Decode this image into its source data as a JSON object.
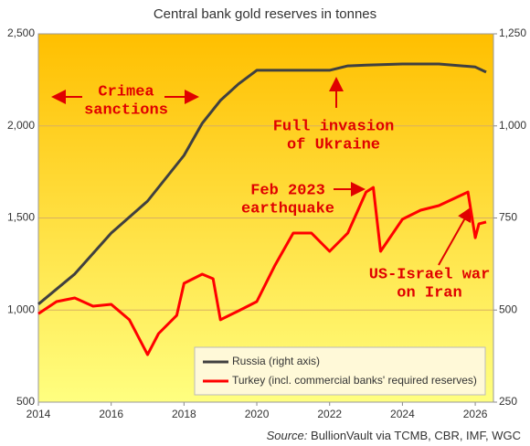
{
  "chart_data": {
    "type": "line",
    "title": "Central bank gold reserves in tonnes",
    "source_label": "Source:",
    "source": "BullionVault via TCMB, CBR, IMF, WGC",
    "xlim": [
      2014,
      2026.5
    ],
    "xticks": [
      2014,
      2016,
      2018,
      2020,
      2022,
      2024,
      2026
    ],
    "ylim": [
      500,
      2500
    ],
    "yticks": [
      500,
      {
        "value": 1000,
        "label": "1,000"
      },
      {
        "value": 1500,
        "label": "1,500"
      },
      {
        "value": 2000,
        "label": "2,000"
      },
      {
        "value": 2500,
        "label": "2,500"
      }
    ],
    "y2lim": [
      250,
      1250
    ],
    "y2ticks": [
      250,
      500,
      750,
      {
        "value": 1000,
        "label": "1,000"
      },
      {
        "value": 1250,
        "label": "1,250"
      }
    ],
    "grid": true,
    "series": [
      {
        "name": "Russia (right axis)",
        "color": "#404040",
        "axis": "y2",
        "x": [
          2014,
          2015,
          2016,
          2017,
          2018,
          2018.5,
          2019,
          2019.5,
          2020,
          2021,
          2022,
          2022.5,
          2023,
          2024,
          2025,
          2026,
          2026.3
        ],
        "values": [
          516,
          598,
          709,
          796,
          920,
          1007,
          1069,
          1114,
          1151,
          1151,
          1151,
          1163,
          1165,
          1168,
          1168,
          1160,
          1146
        ]
      },
      {
        "name": "Turkey (incl. commercial banks' required reserves)",
        "color": "#ff0000",
        "axis": "y",
        "x": [
          2014,
          2014.5,
          2015,
          2015.5,
          2016,
          2016.5,
          2017,
          2017.3,
          2017.8,
          2018,
          2018.5,
          2018.8,
          2019,
          2019.5,
          2020,
          2020.5,
          2021,
          2021.5,
          2022,
          2022.5,
          2023,
          2023.2,
          2023.4,
          2024,
          2024.5,
          2025,
          2025.8,
          2026,
          2026.1,
          2026.3
        ],
        "values": [
          980,
          1046,
          1066,
          1021,
          1031,
          947,
          758,
          872,
          971,
          1145,
          1195,
          1170,
          947,
          996,
          1046,
          1244,
          1418,
          1418,
          1319,
          1418,
          1641,
          1666,
          1319,
          1493,
          1542,
          1567,
          1641,
          1393,
          1468,
          1478
        ]
      }
    ],
    "annotations": [
      {
        "lines": [
          "Crimea",
          "sanctions"
        ]
      },
      {
        "lines": [
          "Full invasion",
          "of Ukraine"
        ]
      },
      {
        "lines": [
          "Feb 2023",
          "earthquake"
        ]
      },
      {
        "lines": [
          "US-Israel war",
          "on Iran"
        ]
      }
    ]
  }
}
